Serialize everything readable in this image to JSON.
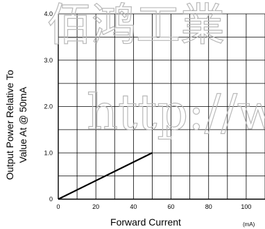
{
  "chart_data": {
    "type": "line",
    "title": "",
    "xlabel": "Forward Current",
    "xunit": "(mA)",
    "ylabel_lines": [
      "Output Power Relative To",
      "Value At @ 50mA"
    ],
    "xlim": [
      0,
      110
    ],
    "ylim": [
      0,
      4.0
    ],
    "x_ticks": [
      0,
      20,
      40,
      60,
      80,
      100
    ],
    "x_tick_labels": [
      "0",
      "20",
      "40",
      "60",
      "80",
      "100"
    ],
    "y_ticks": [
      0,
      1.0,
      2.0,
      3.0,
      4.0
    ],
    "y_tick_labels": [
      "0",
      "1.0",
      "2.0",
      "3.0",
      "4.0"
    ],
    "grid": true,
    "series": [
      {
        "x": [
          0,
          50
        ],
        "y": [
          0,
          1.0
        ]
      }
    ],
    "watermark_lines": [
      "佰鸿工業",
      "http://w"
    ]
  }
}
